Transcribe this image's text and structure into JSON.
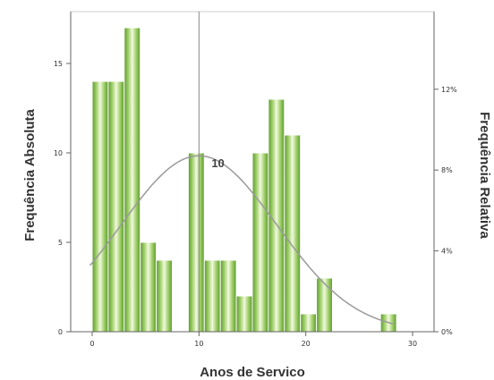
{
  "chart_data": {
    "type": "bar",
    "subtype": "histogram",
    "xlabel": "Anos de Servico",
    "ylabel": "Frequência Absoluta",
    "ylabel_right": "Frequência Relativa",
    "xlim": [
      -2,
      32
    ],
    "ylim": [
      0,
      18
    ],
    "x_ticks": [
      0,
      10,
      20,
      30
    ],
    "x_tick_labels": [
      "0",
      "10",
      "20",
      "30"
    ],
    "y_ticks": [
      0,
      5,
      10,
      15
    ],
    "y_tick_labels": [
      "0",
      "5",
      "10",
      "15"
    ],
    "y2_ticks": [
      0,
      4,
      8,
      12
    ],
    "y2_tick_labels": [
      "0%",
      "4%",
      "8%",
      "12%"
    ],
    "bin_width": 1.5,
    "bins": [
      {
        "x0": 0,
        "value": 14
      },
      {
        "x0": 1.5,
        "value": 14
      },
      {
        "x0": 3,
        "value": 17
      },
      {
        "x0": 4.5,
        "value": 5
      },
      {
        "x0": 6,
        "value": 4
      },
      {
        "x0": 9,
        "value": 10
      },
      {
        "x0": 10.5,
        "value": 4
      },
      {
        "x0": 12,
        "value": 4
      },
      {
        "x0": 13.5,
        "value": 2
      },
      {
        "x0": 15,
        "value": 10
      },
      {
        "x0": 16.5,
        "value": 13
      },
      {
        "x0": 18,
        "value": 11
      },
      {
        "x0": 19.5,
        "value": 1
      },
      {
        "x0": 21,
        "value": 3
      },
      {
        "x0": 27,
        "value": 1
      }
    ],
    "normal_curve": {
      "mean": 10,
      "sd": 7.3,
      "n": 120
    },
    "reference_line": {
      "x": 10,
      "label": "10"
    },
    "grid": false,
    "colors": {
      "bar_light": "#eef8d8",
      "bar_mid": "#9fd068",
      "bar_dark": "#5a9a2a",
      "curve": "#9a9a9a",
      "axis": "#666666"
    }
  }
}
